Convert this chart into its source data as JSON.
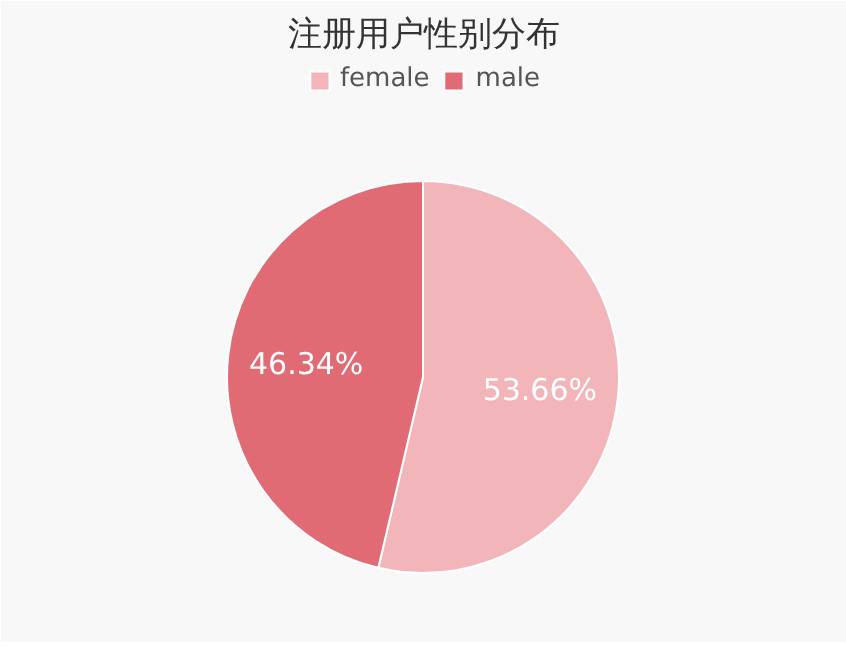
{
  "chart_data": {
    "type": "pie",
    "title": "注册用户性别分布",
    "categories": [
      "female",
      "male"
    ],
    "values": [
      53.66,
      46.34
    ],
    "colors": [
      "#f2b6ba",
      "#e06b75"
    ],
    "value_labels": [
      "53.66%",
      "46.34%"
    ],
    "legend": "top"
  }
}
